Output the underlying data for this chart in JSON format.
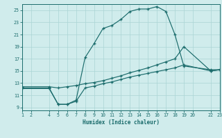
{
  "xlabel": "Humidex (Indice chaleur)",
  "bg_color": "#d0ecec",
  "grid_color": "#aad4d4",
  "line_color": "#1a6b6b",
  "xlim": [
    1,
    23
  ],
  "ylim": [
    8.5,
    26
  ],
  "xticks": [
    1,
    2,
    4,
    5,
    6,
    7,
    8,
    9,
    10,
    11,
    12,
    13,
    14,
    15,
    16,
    17,
    18,
    19,
    20,
    22,
    23
  ],
  "yticks": [
    9,
    11,
    13,
    15,
    17,
    19,
    21,
    23,
    25
  ],
  "line1_x": [
    1,
    4,
    5,
    6,
    7,
    8,
    9,
    10,
    11,
    12,
    13,
    14,
    15,
    16,
    17,
    18,
    19,
    22,
    23
  ],
  "line1_y": [
    12.2,
    12.2,
    9.5,
    9.5,
    10.2,
    17.2,
    19.5,
    22.0,
    22.5,
    23.5,
    24.8,
    25.2,
    25.2,
    25.6,
    24.8,
    21.0,
    15.8,
    15.2,
    15.2
  ],
  "line2_x": [
    1,
    4,
    5,
    6,
    7,
    8,
    9,
    10,
    11,
    12,
    13,
    14,
    15,
    16,
    17,
    18,
    19,
    22,
    23
  ],
  "line2_y": [
    12.4,
    12.4,
    12.2,
    12.4,
    12.6,
    12.9,
    13.1,
    13.4,
    13.8,
    14.2,
    14.7,
    15.1,
    15.5,
    16.0,
    16.5,
    17.0,
    19.0,
    15.0,
    15.2
  ],
  "line3_x": [
    1,
    4,
    5,
    6,
    7,
    8,
    9,
    10,
    11,
    12,
    13,
    14,
    15,
    16,
    17,
    18,
    19,
    22,
    23
  ],
  "line3_y": [
    12.1,
    12.1,
    9.5,
    9.5,
    10.0,
    12.2,
    12.5,
    12.9,
    13.2,
    13.6,
    14.0,
    14.3,
    14.6,
    14.9,
    15.2,
    15.5,
    16.0,
    15.0,
    15.2
  ]
}
